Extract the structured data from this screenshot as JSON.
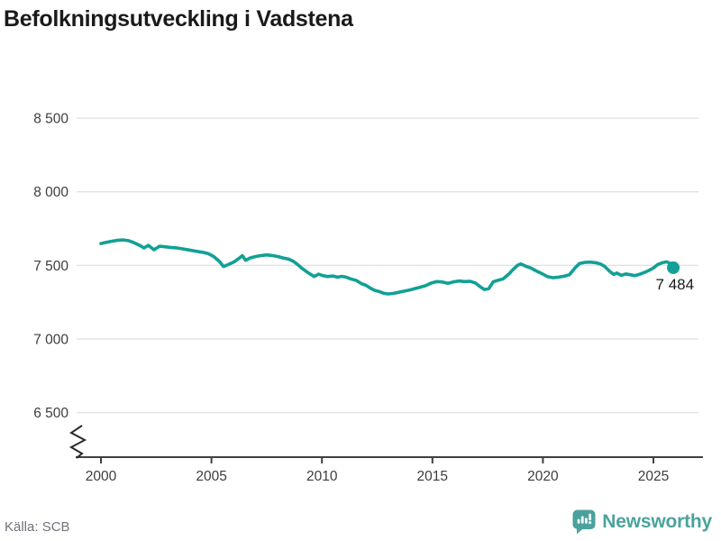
{
  "chart": {
    "title": "Befolkningsutveckling i Vadstena",
    "source": "Källa: SCB",
    "brand": "Newsworthy",
    "end_label": "7 484"
  },
  "colors": {
    "line": "#12a096",
    "end_dot": "#12a096",
    "brand_teal": "#4ba29d",
    "grid": "#e2e2e2",
    "axis": "#404040",
    "tick_text": "#3d3d3d",
    "label_text": "#1a1a1a",
    "muted_text": "#72727c"
  },
  "chart_data": {
    "type": "line",
    "title": "Befolkningsutveckling i Vadstena",
    "xlabel": "",
    "ylabel": "",
    "source": "Källa: SCB",
    "grid": "horizontal",
    "axis_break": true,
    "xlim": [
      1999,
      2027
    ],
    "ylim_display": [
      6500,
      8500
    ],
    "x_ticks": [
      {
        "year": 2000,
        "label": "2000"
      },
      {
        "year": 2005,
        "label": "2005"
      },
      {
        "year": 2010,
        "label": "2010"
      },
      {
        "year": 2015,
        "label": "2015"
      },
      {
        "year": 2020,
        "label": "2020"
      },
      {
        "year": 2025,
        "label": "2025"
      }
    ],
    "y_ticks": [
      {
        "value": 8500,
        "label": "8 500"
      },
      {
        "value": 8000,
        "label": "8 000"
      },
      {
        "value": 7500,
        "label": "7 500"
      },
      {
        "value": 7000,
        "label": "7 000"
      },
      {
        "value": 6500,
        "label": "6 500"
      }
    ],
    "series": [
      {
        "name": "Befolkning",
        "last_value": 7484,
        "last_point_label": "7 484",
        "points": [
          [
            2000.0,
            7648
          ],
          [
            2000.25,
            7656
          ],
          [
            2000.5,
            7664
          ],
          [
            2000.75,
            7670
          ],
          [
            2001.0,
            7673
          ],
          [
            2001.25,
            7668
          ],
          [
            2001.5,
            7654
          ],
          [
            2001.75,
            7636
          ],
          [
            2001.95,
            7618
          ],
          [
            2002.15,
            7636
          ],
          [
            2002.4,
            7606
          ],
          [
            2002.65,
            7630
          ],
          [
            2002.9,
            7626
          ],
          [
            2003.15,
            7622
          ],
          [
            2003.45,
            7618
          ],
          [
            2003.7,
            7612
          ],
          [
            2004.0,
            7604
          ],
          [
            2004.3,
            7596
          ],
          [
            2004.6,
            7589
          ],
          [
            2004.85,
            7580
          ],
          [
            2005.1,
            7560
          ],
          [
            2005.35,
            7528
          ],
          [
            2005.55,
            7492
          ],
          [
            2005.8,
            7508
          ],
          [
            2006.05,
            7526
          ],
          [
            2006.25,
            7548
          ],
          [
            2006.4,
            7566
          ],
          [
            2006.55,
            7534
          ],
          [
            2006.75,
            7550
          ],
          [
            2007.0,
            7560
          ],
          [
            2007.25,
            7567
          ],
          [
            2007.5,
            7571
          ],
          [
            2007.75,
            7567
          ],
          [
            2008.0,
            7560
          ],
          [
            2008.25,
            7550
          ],
          [
            2008.5,
            7542
          ],
          [
            2008.7,
            7528
          ],
          [
            2008.9,
            7506
          ],
          [
            2009.1,
            7480
          ],
          [
            2009.3,
            7458
          ],
          [
            2009.5,
            7438
          ],
          [
            2009.65,
            7424
          ],
          [
            2009.85,
            7440
          ],
          [
            2010.05,
            7430
          ],
          [
            2010.25,
            7424
          ],
          [
            2010.5,
            7428
          ],
          [
            2010.7,
            7420
          ],
          [
            2010.9,
            7425
          ],
          [
            2011.1,
            7420
          ],
          [
            2011.3,
            7408
          ],
          [
            2011.55,
            7398
          ],
          [
            2011.8,
            7375
          ],
          [
            2012.0,
            7364
          ],
          [
            2012.2,
            7345
          ],
          [
            2012.4,
            7330
          ],
          [
            2012.6,
            7322
          ],
          [
            2012.8,
            7310
          ],
          [
            2013.0,
            7306
          ],
          [
            2013.2,
            7309
          ],
          [
            2013.45,
            7316
          ],
          [
            2013.7,
            7324
          ],
          [
            2013.95,
            7332
          ],
          [
            2014.2,
            7342
          ],
          [
            2014.45,
            7352
          ],
          [
            2014.7,
            7362
          ],
          [
            2014.95,
            7380
          ],
          [
            2015.2,
            7390
          ],
          [
            2015.45,
            7387
          ],
          [
            2015.7,
            7378
          ],
          [
            2015.95,
            7388
          ],
          [
            2016.2,
            7394
          ],
          [
            2016.45,
            7390
          ],
          [
            2016.7,
            7392
          ],
          [
            2016.95,
            7380
          ],
          [
            2017.15,
            7356
          ],
          [
            2017.35,
            7336
          ],
          [
            2017.55,
            7342
          ],
          [
            2017.75,
            7388
          ],
          [
            2017.95,
            7398
          ],
          [
            2018.2,
            7408
          ],
          [
            2018.45,
            7440
          ],
          [
            2018.65,
            7472
          ],
          [
            2018.85,
            7500
          ],
          [
            2019.0,
            7510
          ],
          [
            2019.2,
            7496
          ],
          [
            2019.45,
            7482
          ],
          [
            2019.7,
            7462
          ],
          [
            2019.95,
            7444
          ],
          [
            2020.2,
            7424
          ],
          [
            2020.45,
            7416
          ],
          [
            2020.7,
            7420
          ],
          [
            2020.95,
            7426
          ],
          [
            2021.2,
            7436
          ],
          [
            2021.45,
            7482
          ],
          [
            2021.65,
            7512
          ],
          [
            2021.9,
            7520
          ],
          [
            2022.15,
            7522
          ],
          [
            2022.4,
            7518
          ],
          [
            2022.6,
            7510
          ],
          [
            2022.8,
            7492
          ],
          [
            2023.0,
            7462
          ],
          [
            2023.2,
            7438
          ],
          [
            2023.35,
            7448
          ],
          [
            2023.55,
            7432
          ],
          [
            2023.75,
            7442
          ],
          [
            2023.95,
            7436
          ],
          [
            2024.15,
            7430
          ],
          [
            2024.35,
            7438
          ],
          [
            2024.6,
            7452
          ],
          [
            2024.8,
            7466
          ],
          [
            2025.0,
            7482
          ],
          [
            2025.2,
            7506
          ],
          [
            2025.4,
            7518
          ],
          [
            2025.6,
            7524
          ],
          [
            2025.75,
            7514
          ],
          [
            2025.9,
            7484
          ]
        ]
      }
    ]
  }
}
